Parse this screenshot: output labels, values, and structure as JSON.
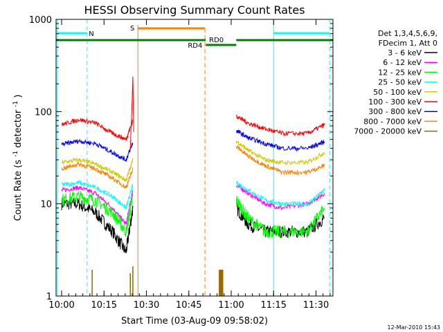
{
  "chart_data": {
    "type": "line",
    "title": "HESSI Observing Summary Count Rates",
    "xlabel": "Start Time (03-Aug-09 09:58:02)",
    "ylabel_main": "Count Rate (s",
    "ylabel_sup1": "-1",
    "ylabel_mid": " detector",
    "ylabel_sup2": "-1",
    "ylabel_end": ")",
    "ylog": true,
    "xlim": [
      9.9672,
      11.6
    ],
    "ylim": [
      1,
      1000
    ],
    "x_ticks": [
      {
        "value": 10.0,
        "label": "10:00"
      },
      {
        "value": 10.25,
        "label": "10:15"
      },
      {
        "value": 10.5,
        "label": "10:30"
      },
      {
        "value": 10.75,
        "label": "10:45"
      },
      {
        "value": 11.0,
        "label": "11:00"
      },
      {
        "value": 11.25,
        "label": "11:15"
      },
      {
        "value": 11.5,
        "label": "11:30"
      }
    ],
    "y_ticks": [
      {
        "value": 1,
        "label": "1"
      },
      {
        "value": 10,
        "label": "10"
      },
      {
        "value": 100,
        "label": "100"
      },
      {
        "value": 1000,
        "label": "1000"
      }
    ],
    "legend_placement": "right",
    "legend_header": [
      "Det 1,3,4,5,6,9,",
      "FDecim 1, Att 0"
    ],
    "series": [
      {
        "name": "3 - 6 keV",
        "color": "#000000",
        "x": [
          10.0,
          10.1,
          10.2,
          10.3,
          10.38,
          10.42,
          11.03,
          11.1,
          11.2,
          11.3,
          11.45,
          11.55
        ],
        "y": [
          10,
          10,
          8,
          5,
          3,
          9,
          9,
          6,
          5,
          5,
          5,
          7
        ]
      },
      {
        "name": "6 - 12 keV",
        "color": "#ff00ff",
        "x": [
          10.0,
          10.1,
          10.2,
          10.3,
          10.38,
          10.42,
          11.03,
          11.1,
          11.2,
          11.3,
          11.45,
          11.55
        ],
        "y": [
          14,
          15,
          13,
          9,
          6,
          14,
          16,
          13,
          10,
          9,
          10,
          13
        ]
      },
      {
        "name": "12 - 25 keV",
        "color": "#00ff00",
        "x": [
          10.0,
          10.1,
          10.2,
          10.3,
          10.38,
          10.42,
          11.03,
          11.1,
          11.2,
          11.3,
          11.45,
          11.55
        ],
        "y": [
          11,
          12,
          11,
          8,
          5,
          12,
          11,
          7,
          5,
          5,
          5,
          9
        ]
      },
      {
        "name": "25 - 50 keV",
        "color": "#00ffff",
        "x": [
          10.0,
          10.1,
          10.2,
          10.3,
          10.38,
          10.42,
          11.03,
          11.1,
          11.2,
          11.3,
          11.45,
          11.55
        ],
        "y": [
          16,
          17,
          15,
          12,
          9,
          16,
          17,
          14,
          11,
          10,
          10,
          14
        ]
      },
      {
        "name": "50 - 100 keV",
        "color": "#cccc00",
        "x": [
          10.0,
          10.1,
          10.2,
          10.3,
          10.38,
          10.42,
          11.03,
          11.1,
          11.2,
          11.3,
          11.45,
          11.55
        ],
        "y": [
          28,
          30,
          27,
          22,
          18,
          30,
          48,
          38,
          30,
          28,
          28,
          36
        ]
      },
      {
        "name": "100 - 300 keV",
        "color": "#ff0000",
        "x": [
          10.0,
          10.1,
          10.2,
          10.3,
          10.38,
          10.42,
          11.03,
          11.1,
          11.2,
          11.3,
          11.45,
          11.55
        ],
        "y": [
          72,
          82,
          75,
          58,
          50,
          80,
          90,
          75,
          65,
          58,
          58,
          72
        ]
      },
      {
        "name": "300 - 800 keV",
        "color": "#0000ff",
        "x": [
          10.0,
          10.1,
          10.2,
          10.3,
          10.38,
          10.42,
          11.03,
          11.1,
          11.2,
          11.3,
          11.45,
          11.55
        ],
        "y": [
          44,
          48,
          45,
          36,
          30,
          46,
          62,
          52,
          45,
          40,
          40,
          47
        ]
      },
      {
        "name": "800 - 7000 keV",
        "color": "#ff8000",
        "x": [
          10.0,
          10.1,
          10.2,
          10.3,
          10.38,
          10.42,
          11.03,
          11.1,
          11.2,
          11.3,
          11.45,
          11.55
        ],
        "y": [
          24,
          27,
          24,
          19,
          15,
          24,
          42,
          33,
          26,
          22,
          22,
          26
        ]
      },
      {
        "name": "7000 - 20000 keV",
        "color": "#996600",
        "x": [],
        "y": []
      }
    ],
    "annotations": {
      "N_label": "N",
      "S_label": "S",
      "RD0_label": "RD0",
      "RD4_label": "RD4"
    },
    "timestamp": "12-Mar-2010 15:43"
  }
}
